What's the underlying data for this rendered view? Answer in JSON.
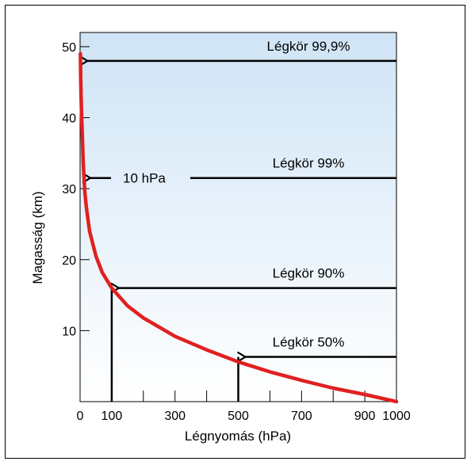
{
  "chart_data": {
    "type": "line",
    "xlabel": "Légnyomás (hPa)",
    "ylabel": "Magasság (km)",
    "xlim": [
      0,
      1000
    ],
    "ylim": [
      0,
      52
    ],
    "xticks": [
      {
        "value": 0,
        "label": "0"
      },
      {
        "value": 100,
        "label": "100"
      },
      {
        "value": 300,
        "label": "300"
      },
      {
        "value": 500,
        "label": "500"
      },
      {
        "value": 700,
        "label": "700"
      },
      {
        "value": 900,
        "label": "900"
      },
      {
        "value": 1000,
        "label": "1000"
      }
    ],
    "yticks": [
      {
        "value": 10,
        "label": "10"
      },
      {
        "value": 20,
        "label": "20"
      },
      {
        "value": 30,
        "label": "30"
      },
      {
        "value": 40,
        "label": "40"
      },
      {
        "value": 50,
        "label": "50"
      }
    ],
    "series": [
      {
        "color": "#e02020",
        "x": [
          1,
          2,
          3,
          5,
          7,
          10,
          15,
          20,
          30,
          50,
          70,
          100,
          150,
          200,
          300,
          400,
          500,
          600,
          700,
          800,
          900,
          1000
        ],
        "y": [
          49,
          45.5,
          43.2,
          40,
          37.6,
          33.5,
          29.5,
          27.3,
          24,
          20.5,
          18.2,
          16,
          13.5,
          11.8,
          9.2,
          7.3,
          5.6,
          4.2,
          3,
          1.9,
          1.0,
          0
        ]
      }
    ],
    "annotations": [
      {
        "label": "Légkör 99,9%",
        "pressure": 1,
        "altitude": 48
      },
      {
        "label": "Légkör 99%",
        "pressure": 10,
        "altitude": 31.5
      },
      {
        "label": "Légkör 90%",
        "pressure": 100,
        "altitude": 16
      },
      {
        "label": "Légkör 50%",
        "pressure": 500,
        "altitude": 6.3
      }
    ],
    "pressure_label": "10 hPa",
    "colors": {
      "curve": "#e02020",
      "background_top": "#cfe4f6",
      "background_bottom": "#ffffff",
      "ink": "#000000"
    }
  }
}
